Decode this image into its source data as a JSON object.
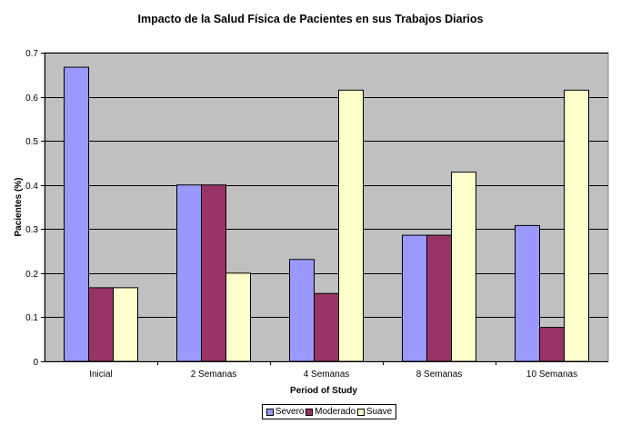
{
  "chart_data": {
    "type": "bar",
    "title": "Impacto de la Salud Física de Pacientes en sus Trabajos Diarios",
    "xlabel": "Period of Study",
    "ylabel": "Pacientes (%)",
    "ylim": [
      0,
      0.7
    ],
    "yticks": [
      "0",
      "0.1",
      "0.2",
      "0.3",
      "0.4",
      "0.5",
      "0.6",
      "0.7"
    ],
    "categories": [
      "Inicial",
      "2 Semanas",
      "4 Semanas",
      "8 Semanas",
      "10 Semanas"
    ],
    "series": [
      {
        "name": "Severo",
        "color": "#9999ff",
        "values": [
          0.667,
          0.4,
          0.231,
          0.286,
          0.308
        ]
      },
      {
        "name": "Moderado",
        "color": "#993366",
        "values": [
          0.167,
          0.4,
          0.154,
          0.286,
          0.077
        ]
      },
      {
        "name": "Suave",
        "color": "#ffffcc",
        "values": [
          0.167,
          0.2,
          0.615,
          0.429,
          0.615
        ]
      }
    ],
    "grid": true,
    "plot_background": "#c0c0c0",
    "legend_position": "bottom"
  }
}
